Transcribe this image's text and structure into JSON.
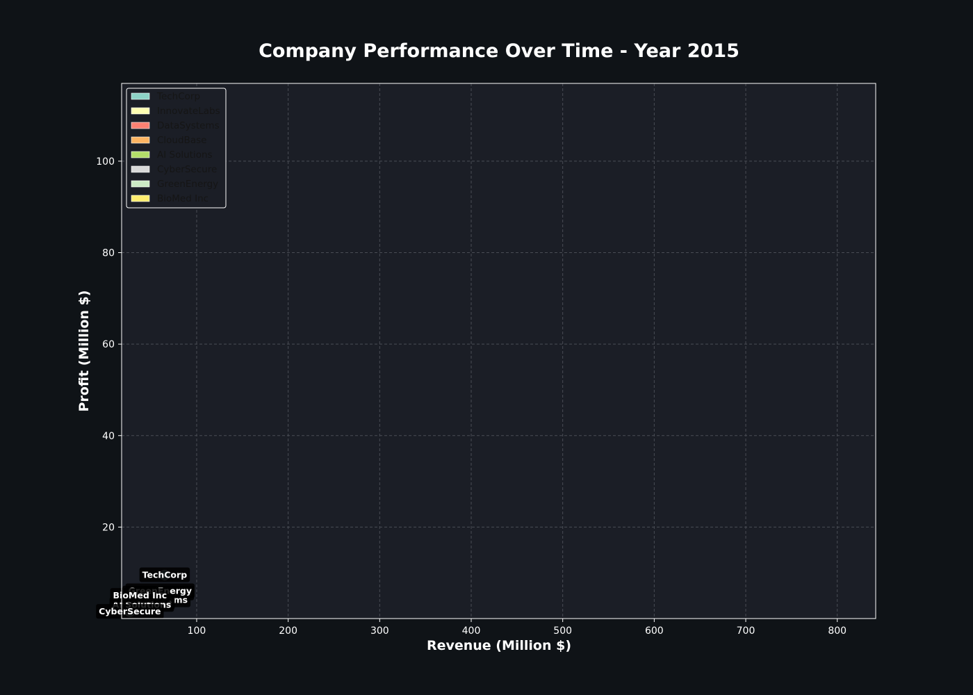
{
  "chart_data": {
    "type": "scatter",
    "title": "Company Performance Over Time - Year 2015",
    "xlabel": "Revenue (Million $)",
    "ylabel": "Profit (Million $)",
    "xlim": [
      18,
      842
    ],
    "ylim": [
      0,
      117
    ],
    "x_ticks": [
      100,
      200,
      300,
      400,
      500,
      600,
      700,
      800
    ],
    "y_ticks": [
      20,
      40,
      60,
      80,
      100
    ],
    "grid": true,
    "legend_position": "top-left",
    "colors": {
      "page_background": "#0f1317",
      "plot_background": "#1b1e26",
      "grid": "#4a4d55",
      "legend_background": "#1b1e26"
    },
    "series": [
      {
        "name": "TechCorp",
        "color": "#8dd3c7",
        "x": 65,
        "y": 9.5,
        "label": "TechCorp"
      },
      {
        "name": "InnovateLabs",
        "color": "#ffffb3",
        "x": 58,
        "y": 5.5,
        "label": "InnovateLabs"
      },
      {
        "name": "DataSystems",
        "color": "#fb8072",
        "x": 55,
        "y": 4.0,
        "label": "DataSystems"
      },
      {
        "name": "CloudBase",
        "color": "#fdb462",
        "x": 45,
        "y": 3.5,
        "label": "CloudBase"
      },
      {
        "name": "AI Solutions",
        "color": "#b3de69",
        "x": 40,
        "y": 3.0,
        "label": "AI Solutions"
      },
      {
        "name": "CyberSecure",
        "color": "#d9d9d9",
        "x": 27,
        "y": 1.5,
        "label": "CyberSecure"
      },
      {
        "name": "GreenEnergy",
        "color": "#ccebc5",
        "x": 60,
        "y": 6.0,
        "label": "GreenEnergy"
      },
      {
        "name": "BioMed Inc",
        "color": "#ffed6f",
        "x": 38,
        "y": 5.0,
        "label": "BioMed Inc"
      }
    ]
  }
}
